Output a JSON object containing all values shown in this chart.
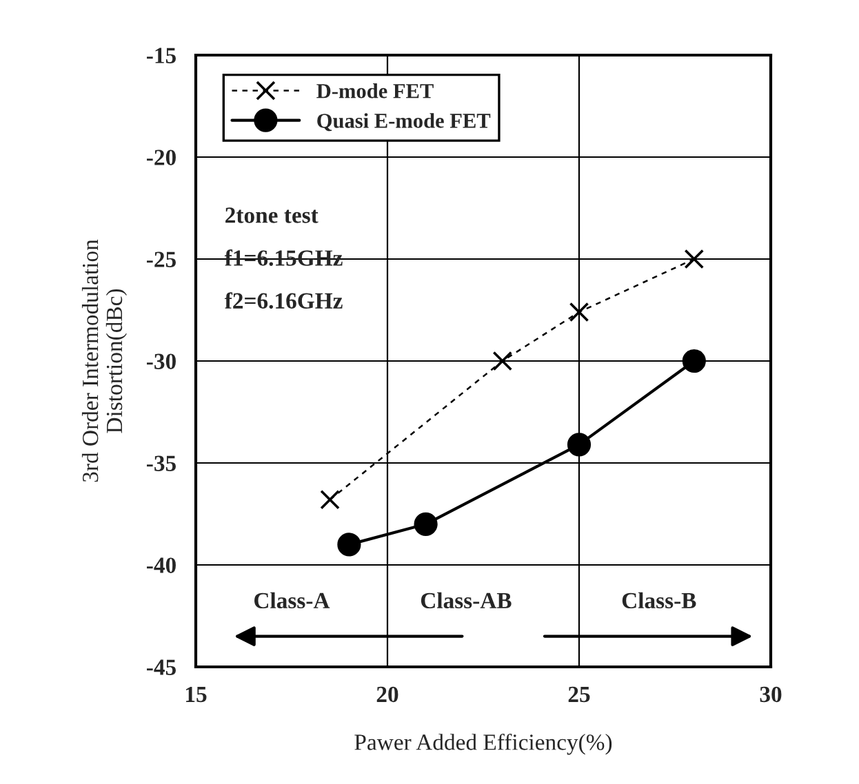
{
  "chart_data": {
    "type": "line",
    "xlabel": "Pawer Added Efficiency(%)",
    "ylabel": "3rd Order Intermodulation\nDistortion(dBc)",
    "xlim": [
      15,
      30
    ],
    "xticks": [
      15,
      20,
      25,
      30
    ],
    "ylim": [
      -45,
      -15
    ],
    "yticks": [
      -45,
      -40,
      -35,
      -30,
      -25,
      -20,
      -15
    ],
    "grid": true,
    "legend": "top left",
    "series": [
      {
        "name": "D-mode FET",
        "color": "#000000",
        "x": [
          18.5,
          23,
          25,
          28
        ],
        "values": [
          -36.8,
          -30,
          -27.6,
          -25
        ],
        "marker": "cross",
        "line_style": "dashed"
      },
      {
        "name": "Quasi E-mode FET",
        "color": "#000000",
        "x": [
          19,
          21,
          25,
          28
        ],
        "values": [
          -39,
          -38,
          -34.1,
          -30
        ],
        "marker": "circle",
        "line_style": "solid"
      }
    ],
    "annotations": [
      "2tone test",
      "f1=6.15GHz",
      "f2=6.16GHz",
      "Class-A",
      "Class-AB",
      "Class-B"
    ]
  }
}
